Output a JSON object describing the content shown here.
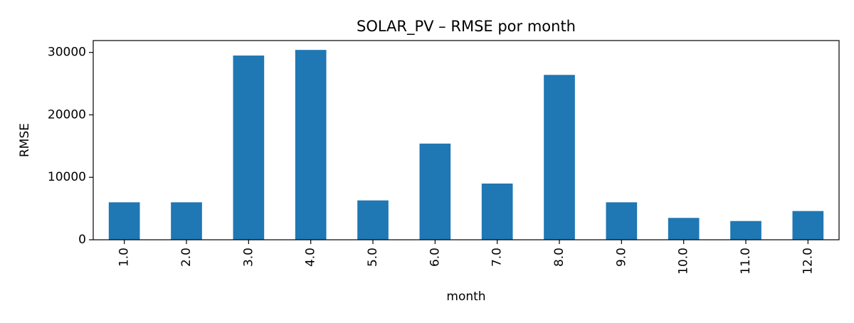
{
  "chart_data": {
    "type": "bar",
    "title": "SOLAR_PV – RMSE por month",
    "xlabel": "month",
    "ylabel": "RMSE",
    "categories": [
      "1.0",
      "2.0",
      "3.0",
      "4.0",
      "5.0",
      "6.0",
      "7.0",
      "8.0",
      "9.0",
      "10.0",
      "11.0",
      "12.0"
    ],
    "values": [
      6000,
      6000,
      29500,
      30400,
      6300,
      15400,
      9000,
      26400,
      6000,
      3500,
      3000,
      4600
    ],
    "ylim": [
      0,
      31900
    ],
    "yticks": [
      0,
      10000,
      20000,
      30000
    ],
    "grid": false,
    "colors": {
      "bar": "#1f77b4",
      "axis": "#000000",
      "background": "#ffffff"
    }
  }
}
